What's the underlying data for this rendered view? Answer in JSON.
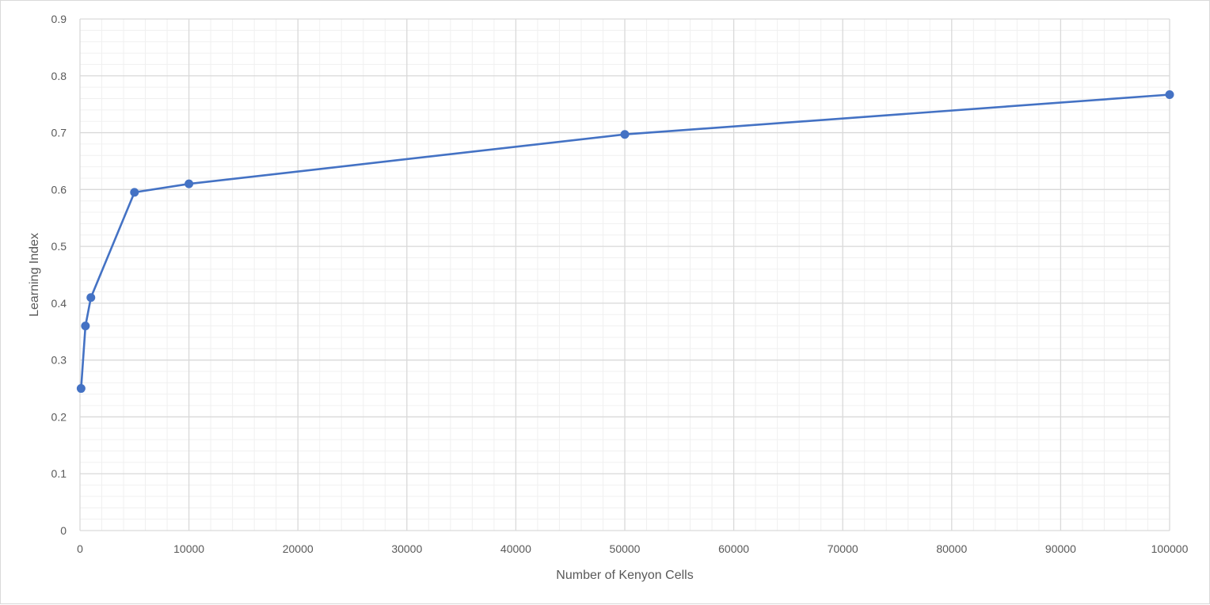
{
  "chart_data": {
    "type": "line",
    "title": "",
    "xlabel": "Number of Kenyon Cells",
    "ylabel": "Learning Index",
    "xlim": [
      0,
      100000
    ],
    "ylim": [
      0,
      0.9
    ],
    "x_major_step": 10000,
    "x_minor_step": 2000,
    "y_major_step": 0.1,
    "y_minor_step": 0.02,
    "grid": true,
    "legend": "none",
    "x_tick_labels": [
      "0",
      "10000",
      "20000",
      "30000",
      "40000",
      "50000",
      "60000",
      "70000",
      "80000",
      "90000",
      "100000"
    ],
    "y_tick_labels": [
      "0",
      "0.1",
      "0.2",
      "0.3",
      "0.4",
      "0.5",
      "0.6",
      "0.7",
      "0.8",
      "0.9"
    ],
    "series": [
      {
        "color": "#4472c4",
        "points": [
          {
            "x": 100,
            "y": 0.25
          },
          {
            "x": 500,
            "y": 0.36
          },
          {
            "x": 1000,
            "y": 0.41
          },
          {
            "x": 5000,
            "y": 0.595
          },
          {
            "x": 10000,
            "y": 0.61
          },
          {
            "x": 50000,
            "y": 0.697
          },
          {
            "x": 100000,
            "y": 0.767
          }
        ]
      }
    ],
    "colors": {
      "major_grid": "#d9d9d9",
      "minor_grid": "#f0f0f0",
      "axis_text": "#595959"
    }
  }
}
